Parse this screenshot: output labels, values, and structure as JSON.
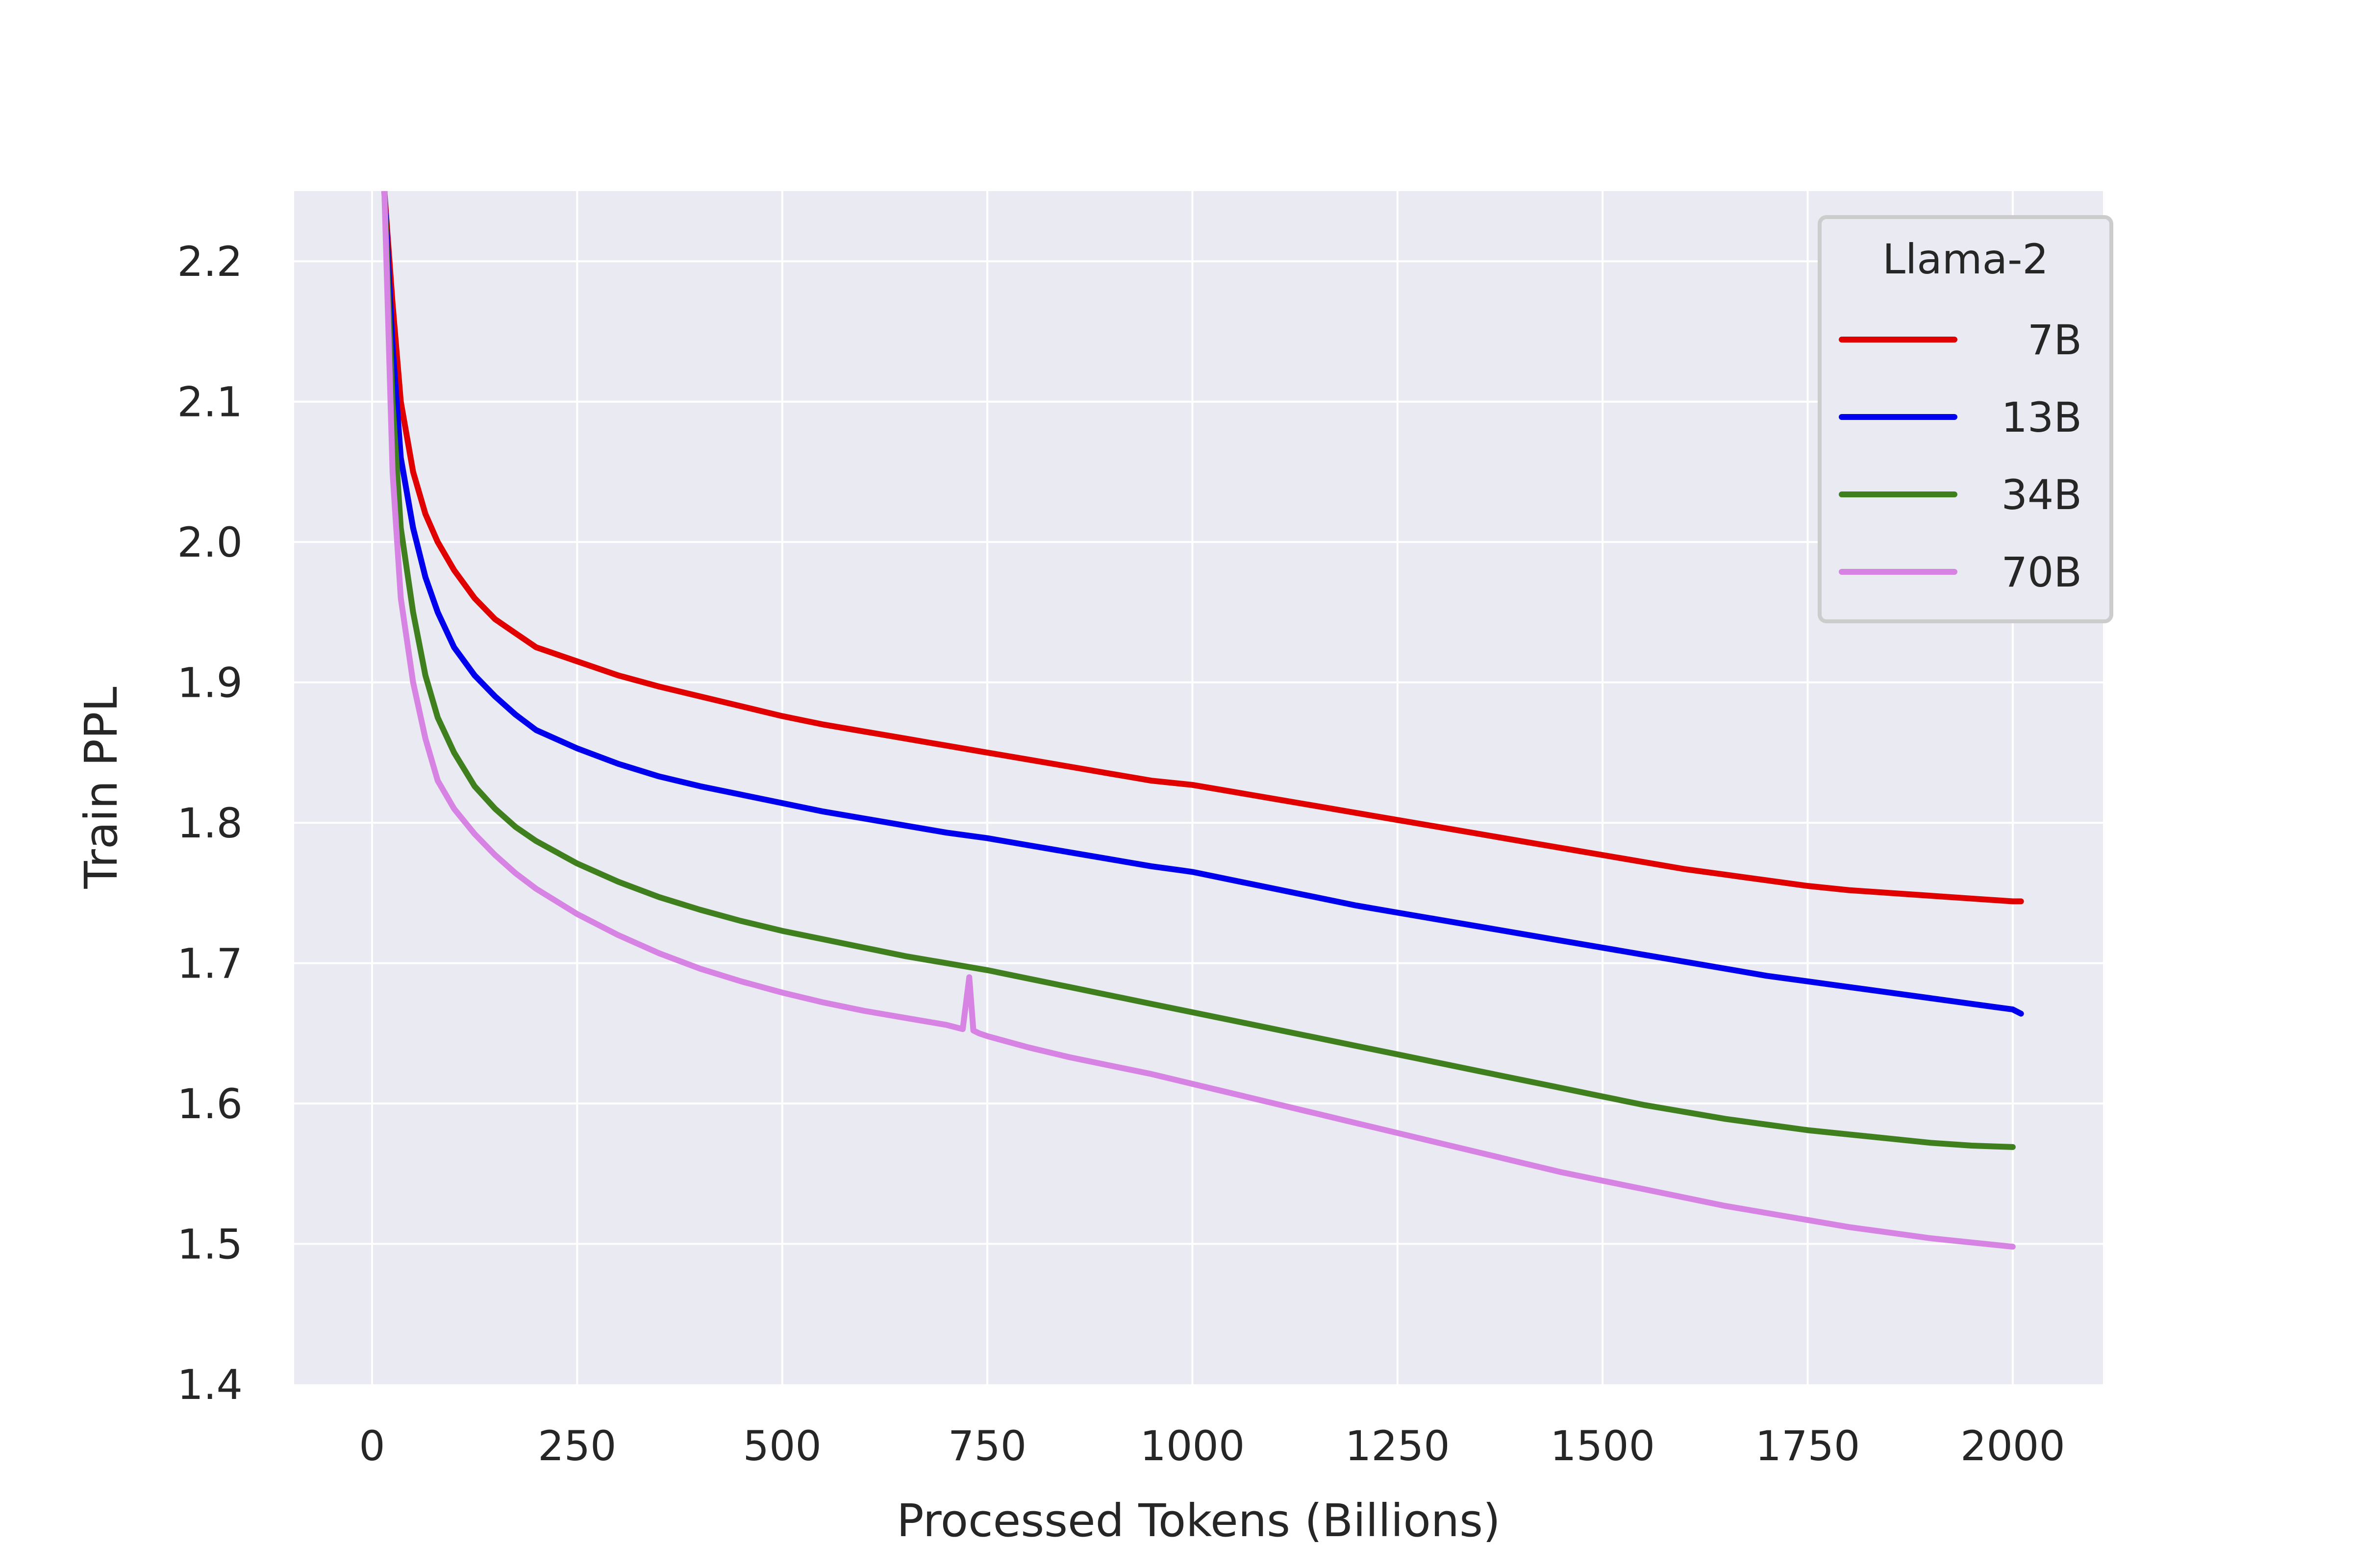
{
  "chart_data": {
    "type": "line",
    "xlabel": "Processed Tokens (Billions)",
    "ylabel": "Train PPL",
    "xlim": [
      -95,
      2110
    ],
    "ylim": [
      1.4,
      2.25
    ],
    "xticks": [
      0,
      250,
      500,
      750,
      1000,
      1250,
      1500,
      1750,
      2000
    ],
    "yticks": [
      1.4,
      1.5,
      1.6,
      1.7,
      1.8,
      1.9,
      2.0,
      2.1,
      2.2
    ],
    "xtick_labels": [
      "0",
      "250",
      "500",
      "750",
      "1000",
      "1250",
      "1500",
      "1750",
      "2000"
    ],
    "ytick_labels": [
      "1.4",
      "1.5",
      "1.6",
      "1.7",
      "1.8",
      "1.9",
      "2.0",
      "2.1",
      "2.2"
    ],
    "grid": true,
    "legend": {
      "title": "Llama-2",
      "position": "top-right"
    },
    "series": [
      {
        "name": "7B",
        "color": "#e00000",
        "x": [
          15,
          25,
          35,
          50,
          65,
          80,
          100,
          125,
          150,
          175,
          200,
          250,
          300,
          350,
          400,
          450,
          500,
          550,
          600,
          650,
          700,
          750,
          800,
          850,
          900,
          950,
          1000,
          1050,
          1100,
          1150,
          1200,
          1250,
          1300,
          1350,
          1400,
          1450,
          1500,
          1550,
          1600,
          1650,
          1700,
          1750,
          1800,
          1850,
          1900,
          1950,
          2000,
          2010
        ],
        "values": [
          2.25,
          2.17,
          2.1,
          2.05,
          2.02,
          2.0,
          1.98,
          1.96,
          1.945,
          1.935,
          1.925,
          1.915,
          1.905,
          1.897,
          1.89,
          1.883,
          1.876,
          1.87,
          1.865,
          1.86,
          1.855,
          1.85,
          1.845,
          1.84,
          1.835,
          1.83,
          1.827,
          1.822,
          1.817,
          1.812,
          1.807,
          1.802,
          1.797,
          1.792,
          1.787,
          1.782,
          1.777,
          1.772,
          1.767,
          1.763,
          1.759,
          1.755,
          1.752,
          1.75,
          1.748,
          1.746,
          1.744,
          1.744
        ]
      },
      {
        "name": "13B",
        "color": "#0000ee",
        "x": [
          15,
          25,
          35,
          50,
          65,
          80,
          100,
          125,
          150,
          175,
          200,
          250,
          300,
          350,
          400,
          450,
          500,
          550,
          600,
          650,
          700,
          750,
          800,
          850,
          900,
          950,
          1000,
          1050,
          1100,
          1150,
          1200,
          1250,
          1300,
          1350,
          1400,
          1450,
          1500,
          1550,
          1600,
          1650,
          1700,
          1750,
          1800,
          1850,
          1900,
          1950,
          2000,
          2010
        ],
        "values": [
          2.25,
          2.14,
          2.06,
          2.01,
          1.975,
          1.95,
          1.925,
          1.905,
          1.89,
          1.877,
          1.866,
          1.853,
          1.842,
          1.833,
          1.826,
          1.82,
          1.814,
          1.808,
          1.803,
          1.798,
          1.793,
          1.789,
          1.784,
          1.779,
          1.774,
          1.769,
          1.765,
          1.759,
          1.753,
          1.747,
          1.741,
          1.736,
          1.731,
          1.726,
          1.721,
          1.716,
          1.711,
          1.706,
          1.701,
          1.696,
          1.691,
          1.687,
          1.683,
          1.679,
          1.675,
          1.671,
          1.667,
          1.664
        ]
      },
      {
        "name": "34B",
        "color": "#3f7f1e",
        "x": [
          15,
          25,
          35,
          50,
          65,
          80,
          100,
          125,
          150,
          175,
          200,
          250,
          300,
          350,
          400,
          450,
          500,
          550,
          600,
          650,
          700,
          750,
          800,
          850,
          900,
          950,
          1000,
          1050,
          1100,
          1150,
          1200,
          1250,
          1300,
          1350,
          1400,
          1450,
          1500,
          1550,
          1600,
          1650,
          1700,
          1750,
          1800,
          1850,
          1900,
          1950,
          2000
        ],
        "values": [
          2.25,
          2.1,
          2.01,
          1.95,
          1.905,
          1.875,
          1.85,
          1.826,
          1.81,
          1.797,
          1.787,
          1.771,
          1.758,
          1.747,
          1.738,
          1.73,
          1.723,
          1.717,
          1.711,
          1.705,
          1.7,
          1.695,
          1.689,
          1.683,
          1.677,
          1.671,
          1.665,
          1.659,
          1.653,
          1.647,
          1.641,
          1.635,
          1.629,
          1.623,
          1.617,
          1.611,
          1.605,
          1.599,
          1.594,
          1.589,
          1.585,
          1.581,
          1.578,
          1.575,
          1.572,
          1.57,
          1.569
        ]
      },
      {
        "name": "70B",
        "color": "#d683e4",
        "x": [
          15,
          25,
          35,
          50,
          65,
          80,
          100,
          125,
          150,
          175,
          200,
          250,
          300,
          350,
          400,
          450,
          500,
          550,
          600,
          650,
          700,
          720,
          728,
          733,
          740,
          750,
          800,
          850,
          900,
          950,
          1000,
          1050,
          1100,
          1150,
          1200,
          1250,
          1300,
          1350,
          1400,
          1450,
          1500,
          1550,
          1600,
          1650,
          1700,
          1750,
          1800,
          1850,
          1900,
          1950,
          2000
        ],
        "values": [
          2.25,
          2.05,
          1.96,
          1.9,
          1.86,
          1.83,
          1.81,
          1.792,
          1.777,
          1.764,
          1.753,
          1.735,
          1.72,
          1.707,
          1.696,
          1.687,
          1.679,
          1.672,
          1.666,
          1.661,
          1.656,
          1.653,
          1.69,
          1.652,
          1.65,
          1.648,
          1.64,
          1.633,
          1.627,
          1.621,
          1.614,
          1.607,
          1.6,
          1.593,
          1.586,
          1.579,
          1.572,
          1.565,
          1.558,
          1.551,
          1.545,
          1.539,
          1.533,
          1.527,
          1.522,
          1.517,
          1.512,
          1.508,
          1.504,
          1.501,
          1.498
        ]
      }
    ]
  }
}
